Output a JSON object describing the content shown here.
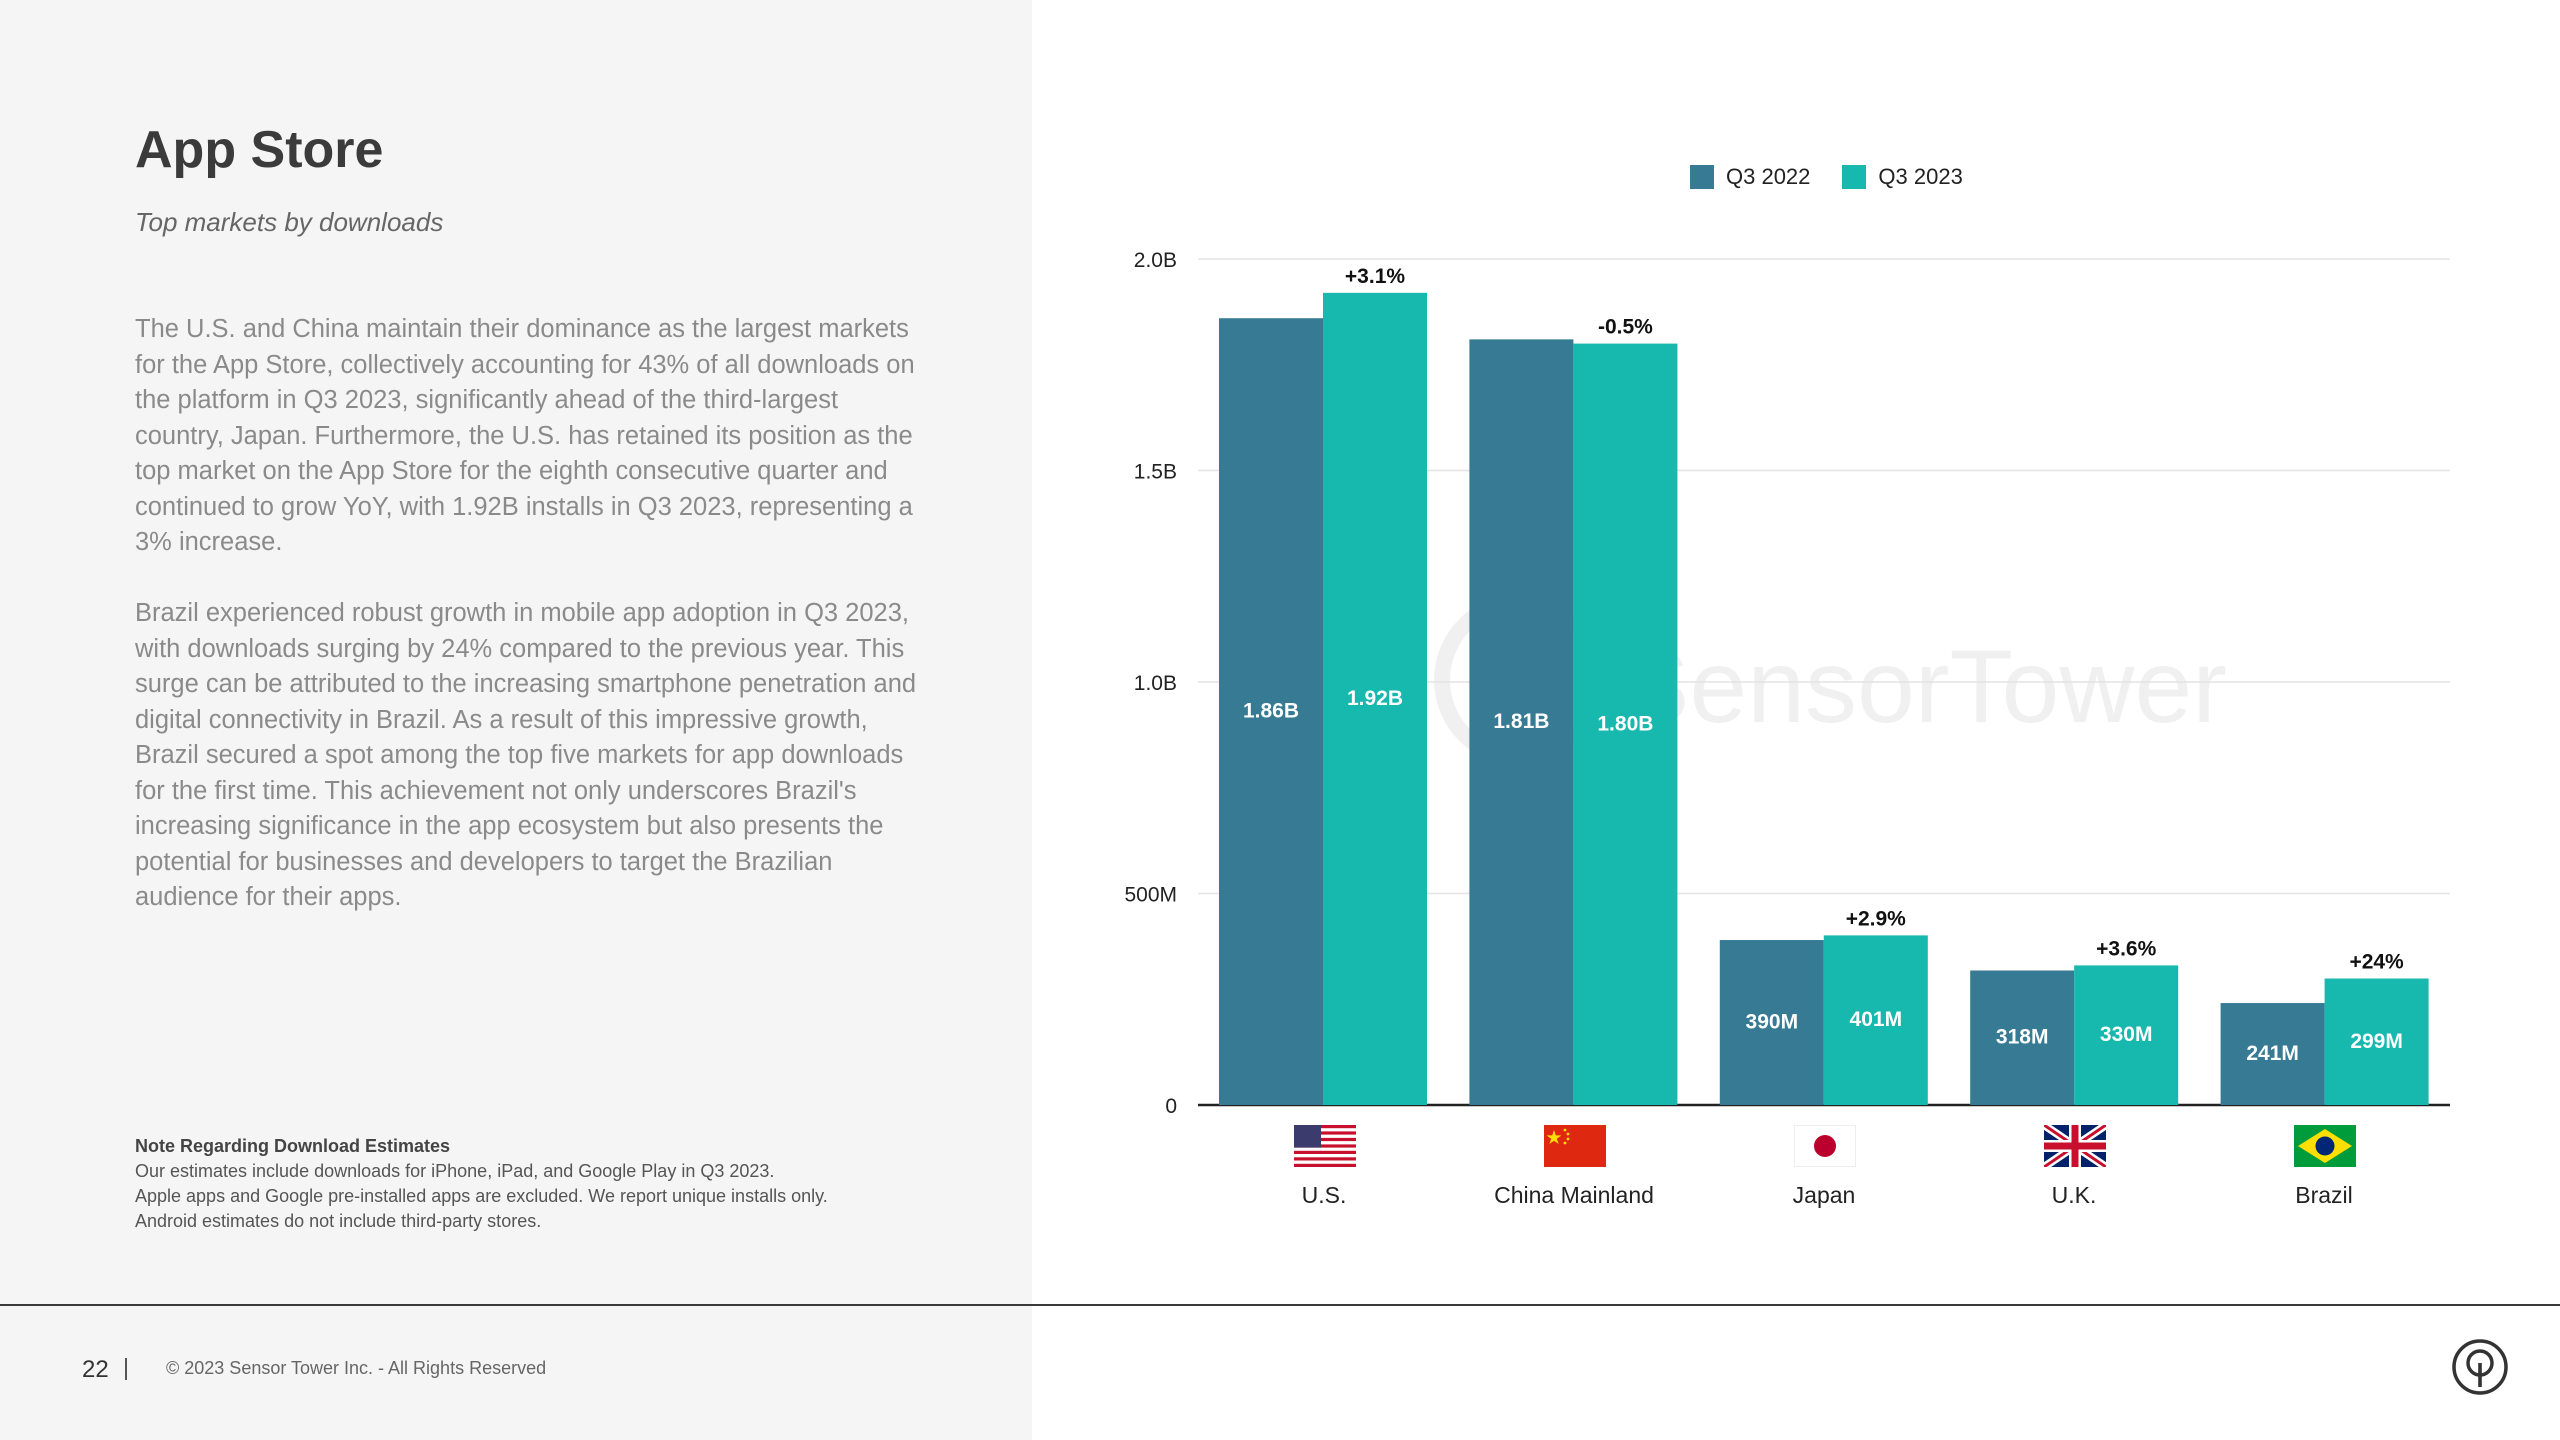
{
  "page": {
    "title": "App Store",
    "subtitle": "Top markets by downloads",
    "paragraphs": [
      "The U.S. and China maintain their dominance as the largest markets for the App Store, collectively accounting for 43% of all downloads on the platform in Q3 2023, significantly ahead of the third-largest country, Japan. Furthermore, the U.S. has retained its position as the top market on the App Store for the eighth consecutive quarter and continued to grow YoY, with 1.92B installs in Q3 2023, representing a 3% increase.",
      "Brazil experienced robust growth in mobile app adoption in Q3 2023, with downloads surging by 24% compared to the previous year. This surge can be attributed to the increasing smartphone penetration and digital connectivity in Brazil. As a result of this impressive growth, Brazil secured a spot among the top five markets for app downloads for the first time. This achievement not only underscores Brazil's increasing significance in the app ecosystem but also presents the potential for businesses and developers to target the Brazilian audience for their apps."
    ],
    "note": {
      "title": "Note Regarding Download Estimates",
      "lines": [
        "Our estimates include downloads for iPhone, iPad, and Google Play in Q3 2023.",
        "Apple apps and Google pre-installed apps are excluded. We report unique installs only.",
        "Android estimates do not include third-party stores."
      ]
    },
    "footer": {
      "page_number": "22",
      "copyright": "© 2023 Sensor Tower Inc. - All Rights Reserved"
    },
    "watermark": "SensorTower"
  },
  "chart_data": {
    "type": "bar",
    "categories": [
      "U.S.",
      "China Mainland",
      "Japan",
      "U.K.",
      "Brazil"
    ],
    "category_flags": [
      "us-flag-icon",
      "china-flag-icon",
      "japan-flag-icon",
      "uk-flag-icon",
      "brazil-flag-icon"
    ],
    "series": [
      {
        "name": "Q3 2022",
        "color": "#367a93",
        "values": [
          1.86,
          1.81,
          0.39,
          0.318,
          0.241
        ],
        "labels": [
          "1.86B",
          "1.81B",
          "390M",
          "318M",
          "241M"
        ]
      },
      {
        "name": "Q3 2023",
        "color": "#17b8ad",
        "values": [
          1.92,
          1.8,
          0.401,
          0.33,
          0.299
        ],
        "labels": [
          "1.92B",
          "1.80B",
          "401M",
          "330M",
          "299M"
        ]
      }
    ],
    "changes": [
      "+3.1%",
      "-0.5%",
      "+2.9%",
      "+3.6%",
      "+24%"
    ],
    "unit": "billions of downloads",
    "ylim": [
      0,
      2.0
    ],
    "yticks": [
      0,
      0.5,
      1.0,
      1.5,
      2.0
    ],
    "ytick_labels": [
      "0",
      "500M",
      "1.0B",
      "1.5B",
      "2.0B"
    ],
    "grid": true,
    "legend": "top-center"
  }
}
